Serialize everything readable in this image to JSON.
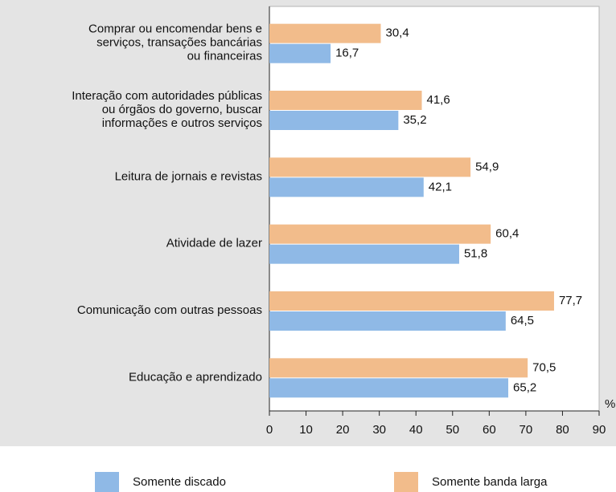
{
  "chart_data": {
    "type": "barh",
    "categories": [
      "Comprar ou encomendar bens e\nserviços, transações bancárias\nou financeiras",
      "Interação com autoridades públicas\nou órgãos do governo, buscar\ninformações e outros serviços",
      "Leitura de jornais e revistas",
      "Atividade de lazer",
      "Comunicação com outras pessoas",
      "Educação e aprendizado"
    ],
    "series": [
      {
        "name": "Somente banda larga",
        "color": "#f2bc8b",
        "values": [
          30.4,
          41.6,
          54.9,
          60.4,
          77.7,
          70.5
        ],
        "value_labels": [
          "30,4",
          "41,6",
          "54,9",
          "60,4",
          "77,7",
          "70,5"
        ]
      },
      {
        "name": "Somente discado",
        "color": "#8fb9e6",
        "values": [
          16.7,
          35.2,
          42.1,
          51.8,
          64.5,
          65.2
        ],
        "value_labels": [
          "16,7",
          "35,2",
          "42,1",
          "51,8",
          "64,5",
          "65,2"
        ]
      }
    ],
    "xlabel": "%",
    "xlim": [
      0,
      90
    ],
    "xticks": [
      0,
      10,
      20,
      30,
      40,
      50,
      60,
      70,
      80,
      90
    ]
  }
}
